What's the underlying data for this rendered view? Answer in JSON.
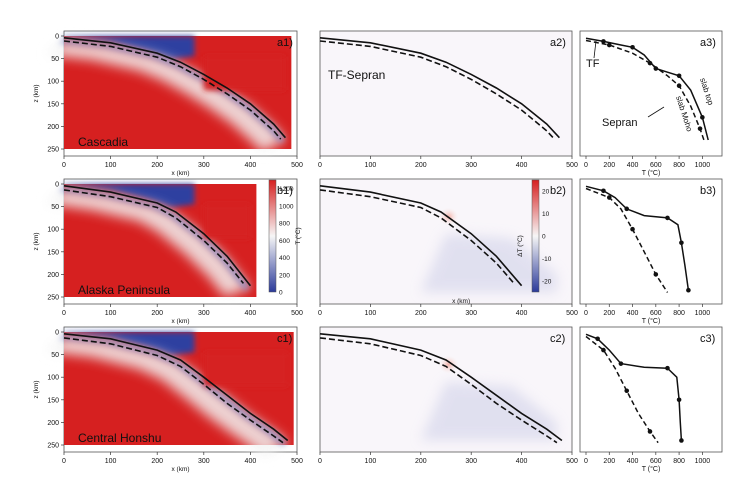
{
  "chart_data": {
    "type": "heatmap",
    "description_rows": [
      "a",
      "b",
      "c"
    ],
    "x_axis": {
      "label": "x (km)",
      "ticks": [
        0,
        100,
        200,
        300,
        400,
        500
      ]
    },
    "z_axis": {
      "label": "z (km)",
      "ticks": [
        0,
        50,
        100,
        150,
        200,
        250
      ],
      "range": [
        0,
        250
      ]
    },
    "temp_axis": {
      "label": "T (°C)",
      "ticks": [
        0,
        200,
        400,
        600,
        800,
        1000
      ],
      "range": [
        0,
        1100
      ]
    },
    "colorbar_T": {
      "label": "T (°C)",
      "ticks": [
        0,
        200,
        400,
        600,
        800,
        1000,
        1200
      ],
      "range": [
        0,
        1300
      ]
    },
    "colorbar_dT": {
      "label": "ΔT (°C)",
      "ticks": [
        -20,
        -10,
        0,
        10,
        20
      ],
      "range": [
        -25,
        25
      ]
    },
    "rows": [
      {
        "region": "Cascadia",
        "panels": [
          "a1)",
          "a2)",
          "a3)"
        ],
        "diff_label": "TF-Sepran",
        "legend": {
          "tf": "TF",
          "sepran": "Sepran",
          "slab_top": "slab top",
          "slab_moho": "slab Moho"
        },
        "slab_top": [
          [
            0,
            4
          ],
          [
            100,
            15
          ],
          [
            200,
            38
          ],
          [
            250,
            58
          ],
          [
            300,
            85
          ],
          [
            350,
            115
          ],
          [
            400,
            150
          ],
          [
            450,
            195
          ],
          [
            475,
            225
          ]
        ],
        "slab_moho": [
          [
            0,
            11
          ],
          [
            100,
            23
          ],
          [
            200,
            47
          ],
          [
            250,
            68
          ],
          [
            300,
            96
          ],
          [
            350,
            128
          ],
          [
            400,
            164
          ],
          [
            450,
            210
          ],
          [
            465,
            228
          ]
        ],
        "geotherm_top": [
          [
            0,
            5
          ],
          [
            150,
            12
          ],
          [
            300,
            20
          ],
          [
            400,
            25
          ],
          [
            500,
            42
          ],
          [
            600,
            72
          ],
          [
            700,
            80
          ],
          [
            800,
            88
          ],
          [
            900,
            120
          ],
          [
            1000,
            180
          ],
          [
            1050,
            230
          ]
        ],
        "geotherm_moho": [
          [
            0,
            10
          ],
          [
            200,
            20
          ],
          [
            400,
            38
          ],
          [
            550,
            60
          ],
          [
            700,
            88
          ],
          [
            800,
            110
          ],
          [
            900,
            155
          ],
          [
            980,
            205
          ],
          [
            1020,
            235
          ]
        ]
      },
      {
        "region": "Alaska Peninsula",
        "panels": [
          "b1)",
          "b2)",
          "b3)"
        ],
        "slab_top": [
          [
            0,
            4
          ],
          [
            100,
            18
          ],
          [
            200,
            42
          ],
          [
            240,
            62
          ],
          [
            300,
            110
          ],
          [
            350,
            160
          ],
          [
            400,
            225
          ]
        ],
        "slab_moho": [
          [
            0,
            13
          ],
          [
            100,
            28
          ],
          [
            200,
            52
          ],
          [
            240,
            75
          ],
          [
            300,
            125
          ],
          [
            350,
            175
          ],
          [
            385,
            220
          ]
        ],
        "geotherm_top": [
          [
            0,
            5
          ],
          [
            150,
            15
          ],
          [
            250,
            30
          ],
          [
            350,
            55
          ],
          [
            500,
            70
          ],
          [
            700,
            75
          ],
          [
            790,
            90
          ],
          [
            820,
            130
          ],
          [
            850,
            180
          ],
          [
            880,
            235
          ]
        ],
        "geotherm_moho": [
          [
            0,
            10
          ],
          [
            200,
            30
          ],
          [
            300,
            55
          ],
          [
            400,
            100
          ],
          [
            500,
            150
          ],
          [
            600,
            200
          ],
          [
            700,
            240
          ]
        ]
      },
      {
        "region": "Central Honshu",
        "panels": [
          "c1)",
          "c2)",
          "c3)"
        ],
        "slab_top": [
          [
            0,
            4
          ],
          [
            100,
            15
          ],
          [
            200,
            40
          ],
          [
            250,
            62
          ],
          [
            300,
            100
          ],
          [
            350,
            140
          ],
          [
            400,
            180
          ],
          [
            450,
            215
          ],
          [
            480,
            240
          ]
        ],
        "slab_moho": [
          [
            0,
            13
          ],
          [
            100,
            26
          ],
          [
            200,
            52
          ],
          [
            250,
            76
          ],
          [
            300,
            116
          ],
          [
            350,
            158
          ],
          [
            400,
            195
          ],
          [
            450,
            230
          ],
          [
            470,
            245
          ]
        ],
        "geotherm_top": [
          [
            0,
            5
          ],
          [
            100,
            15
          ],
          [
            200,
            40
          ],
          [
            300,
            70
          ],
          [
            500,
            78
          ],
          [
            700,
            80
          ],
          [
            780,
            100
          ],
          [
            800,
            150
          ],
          [
            810,
            200
          ],
          [
            820,
            240
          ]
        ],
        "geotherm_moho": [
          [
            0,
            10
          ],
          [
            150,
            40
          ],
          [
            250,
            80
          ],
          [
            350,
            130
          ],
          [
            450,
            180
          ],
          [
            550,
            220
          ],
          [
            620,
            245
          ]
        ]
      }
    ]
  }
}
